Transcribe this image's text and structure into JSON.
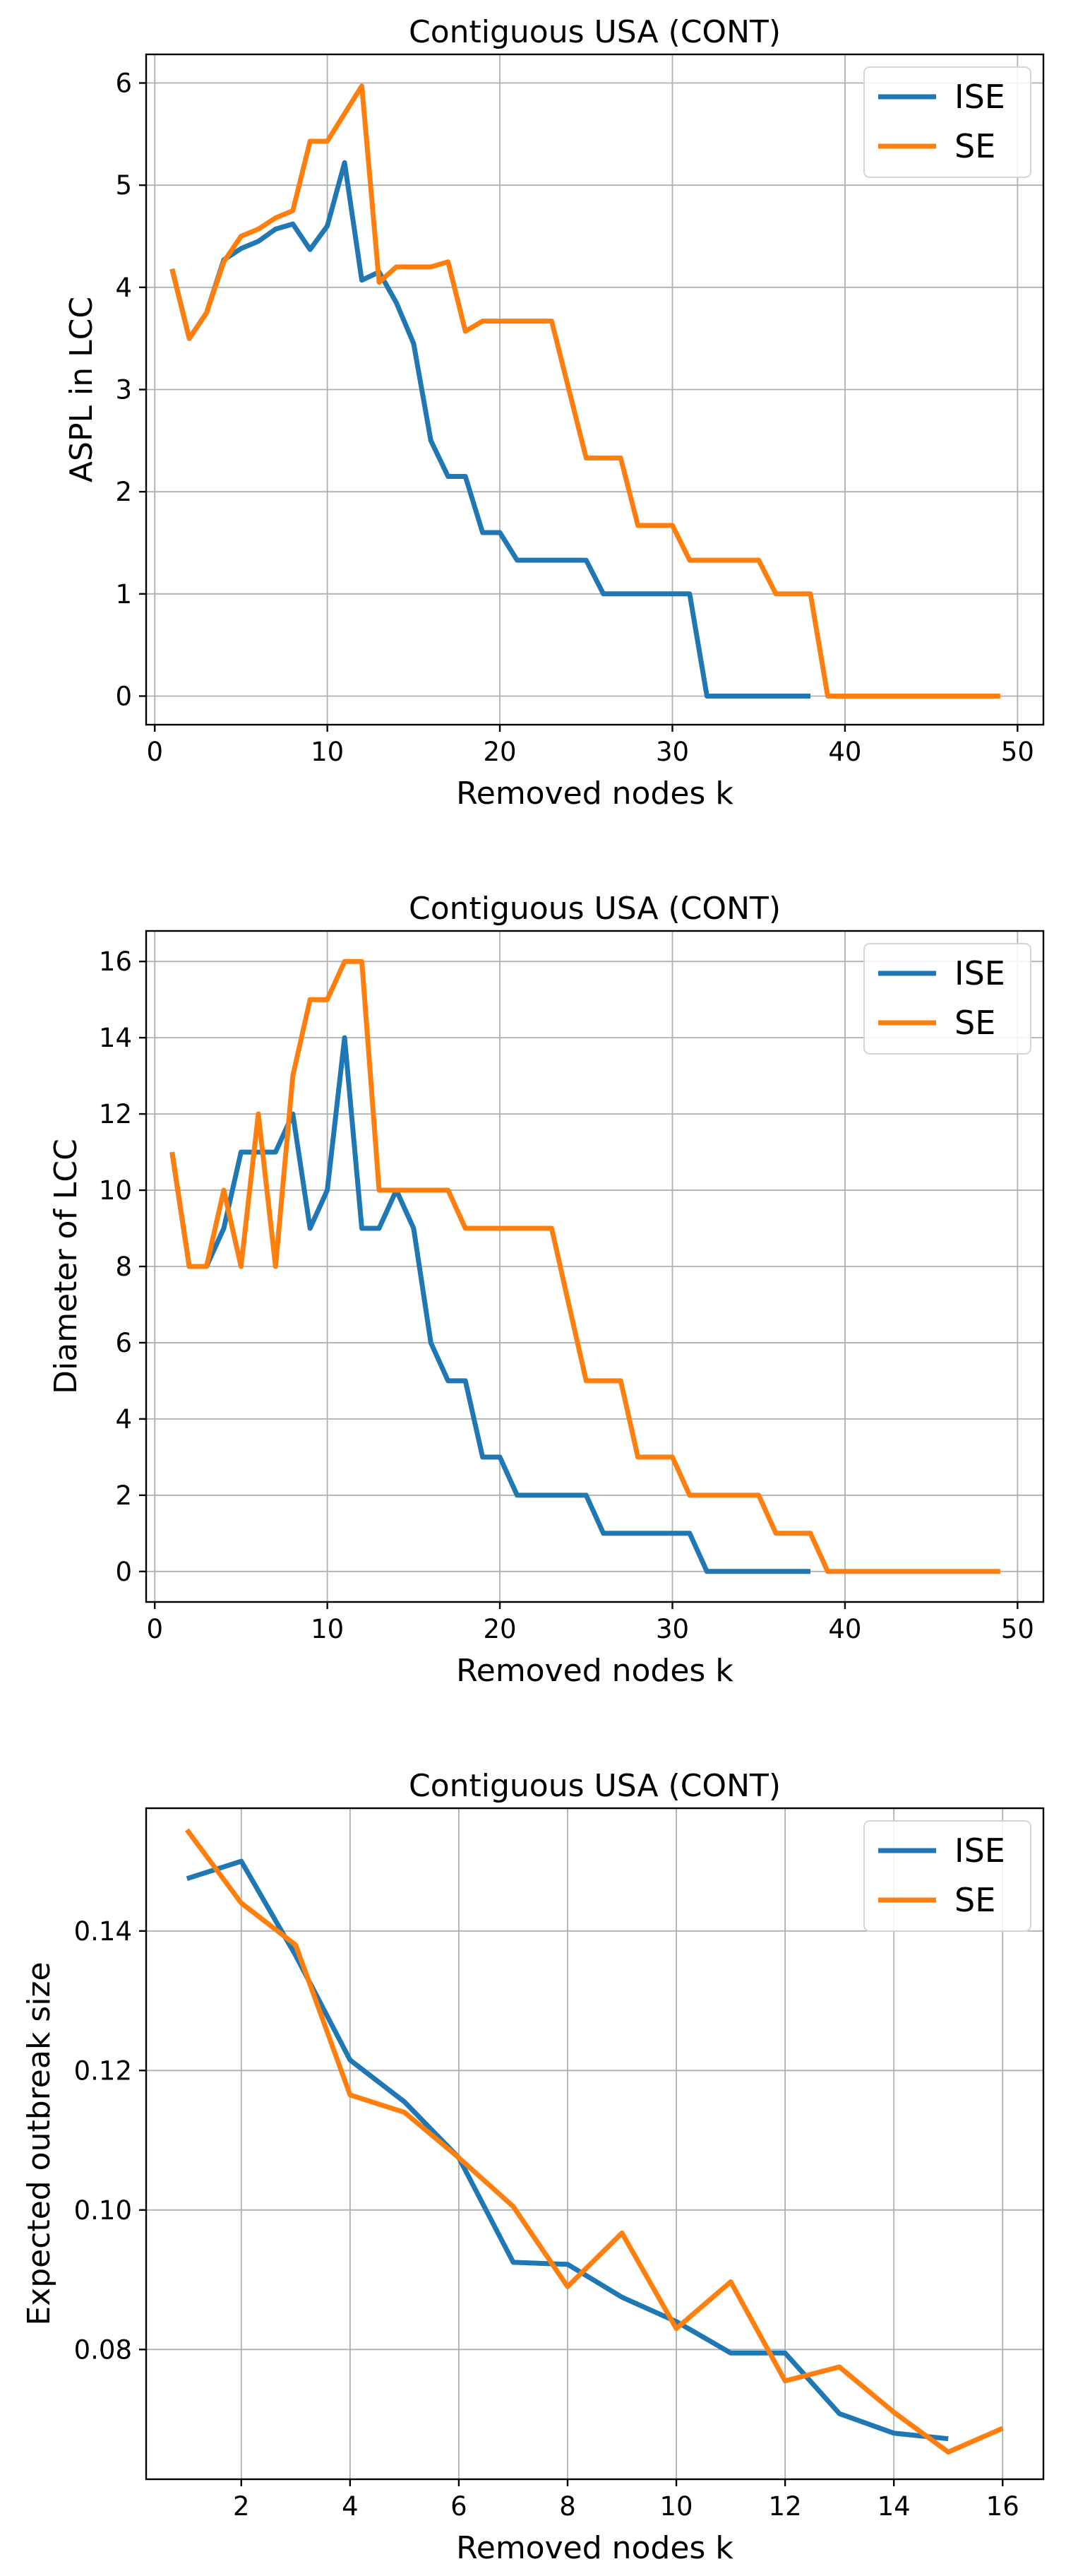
{
  "colors": {
    "ISE": "#1f77b4",
    "SE": "#ff7f0e"
  },
  "chart_data": [
    {
      "type": "line",
      "title": "Contiguous USA (CONT)",
      "xlabel": "Removed nodes k",
      "ylabel": "ASPL in LCC",
      "xlim": [
        -0.5,
        51.5
      ],
      "ylim": [
        -0.28,
        6.28
      ],
      "xticks": [
        0,
        10,
        20,
        30,
        40,
        50
      ],
      "yticks": [
        0,
        1,
        2,
        3,
        4,
        5,
        6
      ],
      "tick_labels_x": [
        "0",
        "10",
        "20",
        "30",
        "40",
        "50"
      ],
      "tick_labels_y": [
        "0",
        "1",
        "2",
        "3",
        "4",
        "5",
        "6"
      ],
      "grid": true,
      "legend": "top-right",
      "series": [
        {
          "name": "ISE",
          "x": [
            1,
            2,
            3,
            4,
            5,
            6,
            7,
            8,
            9,
            10,
            11,
            12,
            13,
            14,
            15,
            16,
            17,
            18,
            19,
            20,
            21,
            22,
            23,
            24,
            25,
            26,
            27,
            28,
            29,
            30,
            31,
            32,
            33,
            34,
            35,
            36,
            37,
            38
          ],
          "y": [
            4.18,
            3.5,
            3.75,
            4.27,
            4.38,
            4.45,
            4.57,
            4.62,
            4.37,
            4.6,
            5.22,
            4.07,
            4.15,
            3.85,
            3.45,
            2.5,
            2.15,
            2.15,
            1.6,
            1.6,
            1.33,
            1.33,
            1.33,
            1.33,
            1.33,
            1.0,
            1.0,
            1.0,
            1.0,
            1.0,
            1.0,
            0,
            0,
            0,
            0,
            0,
            0,
            0
          ]
        },
        {
          "name": "SE",
          "x": [
            1,
            2,
            3,
            4,
            5,
            6,
            7,
            8,
            9,
            10,
            11,
            12,
            13,
            14,
            15,
            16,
            17,
            18,
            19,
            20,
            21,
            22,
            23,
            24,
            25,
            26,
            27,
            28,
            29,
            30,
            31,
            32,
            33,
            34,
            35,
            36,
            37,
            38,
            39,
            40,
            41,
            42,
            43,
            44,
            45,
            46,
            47,
            48,
            49
          ],
          "y": [
            4.18,
            3.5,
            3.75,
            4.25,
            4.5,
            4.57,
            4.68,
            4.75,
            5.43,
            5.43,
            5.7,
            5.97,
            4.05,
            4.2,
            4.2,
            4.2,
            4.25,
            3.57,
            3.67,
            3.67,
            3.67,
            3.67,
            3.67,
            3.0,
            2.33,
            2.33,
            2.33,
            1.67,
            1.67,
            1.67,
            1.33,
            1.33,
            1.33,
            1.33,
            1.33,
            1.0,
            1.0,
            1.0,
            0,
            0,
            0,
            0,
            0,
            0,
            0,
            0,
            0,
            0,
            0
          ]
        }
      ]
    },
    {
      "type": "line",
      "title": "Contiguous USA (CONT)",
      "xlabel": "Removed nodes k",
      "ylabel": "Diameter of LCC",
      "xlim": [
        -0.5,
        51.5
      ],
      "ylim": [
        -0.8,
        16.8
      ],
      "xticks": [
        0,
        10,
        20,
        30,
        40,
        50
      ],
      "yticks": [
        0,
        2,
        4,
        6,
        8,
        10,
        12,
        14,
        16
      ],
      "tick_labels_x": [
        "0",
        "10",
        "20",
        "30",
        "40",
        "50"
      ],
      "tick_labels_y": [
        "0",
        "2",
        "4",
        "6",
        "8",
        "10",
        "12",
        "14",
        "16"
      ],
      "grid": true,
      "legend": "top-right",
      "series": [
        {
          "name": "ISE",
          "x": [
            1,
            2,
            3,
            4,
            5,
            6,
            7,
            8,
            9,
            10,
            11,
            12,
            13,
            14,
            15,
            16,
            17,
            18,
            19,
            20,
            21,
            22,
            23,
            24,
            25,
            26,
            27,
            28,
            29,
            30,
            31,
            32,
            33,
            34,
            35,
            36,
            37,
            38
          ],
          "y": [
            11,
            8,
            8,
            9,
            11,
            11,
            11,
            12,
            9,
            10,
            14,
            9,
            9,
            10,
            9,
            6,
            5,
            5,
            3,
            3,
            2,
            2,
            2,
            2,
            2,
            1,
            1,
            1,
            1,
            1,
            1,
            0,
            0,
            0,
            0,
            0,
            0,
            0
          ]
        },
        {
          "name": "SE",
          "x": [
            1,
            2,
            3,
            4,
            5,
            6,
            7,
            8,
            9,
            10,
            11,
            12,
            13,
            14,
            15,
            16,
            17,
            18,
            19,
            20,
            21,
            22,
            23,
            24,
            25,
            26,
            27,
            28,
            29,
            30,
            31,
            32,
            33,
            34,
            35,
            36,
            37,
            38,
            39,
            40,
            41,
            42,
            43,
            44,
            45,
            46,
            47,
            48,
            49
          ],
          "y": [
            11,
            8,
            8,
            10,
            8,
            12,
            8,
            13,
            15,
            15,
            16,
            16,
            10,
            10,
            10,
            10,
            10,
            9,
            9,
            9,
            9,
            9,
            9,
            7,
            5,
            5,
            5,
            3,
            3,
            3,
            2,
            2,
            2,
            2,
            2,
            1,
            1,
            1,
            0,
            0,
            0,
            0,
            0,
            0,
            0,
            0,
            0,
            0,
            0
          ]
        }
      ]
    },
    {
      "type": "line",
      "title": "Contiguous USA (CONT)",
      "xlabel": "Removed nodes k",
      "ylabel": "Expected outbreak size",
      "xlim": [
        0.25,
        16.75
      ],
      "ylim": [
        0.0614,
        0.1576
      ],
      "xticks": [
        2,
        4,
        6,
        8,
        10,
        12,
        14,
        16
      ],
      "yticks": [
        0.08,
        0.1,
        0.12,
        0.14
      ],
      "tick_labels_x": [
        "2",
        "4",
        "6",
        "8",
        "10",
        "12",
        "14",
        "16"
      ],
      "tick_labels_y": [
        "0.08",
        "0.10",
        "0.12",
        "0.14"
      ],
      "grid": true,
      "legend": "top-right",
      "series": [
        {
          "name": "ISE",
          "x": [
            1,
            2,
            3,
            4,
            5,
            6,
            7,
            8,
            9,
            10,
            11,
            12,
            13,
            14,
            15
          ],
          "y": [
            0.1475,
            0.15,
            0.1365,
            0.1215,
            0.1155,
            0.1075,
            0.0925,
            0.0922,
            0.0875,
            0.084,
            0.0795,
            0.0795,
            0.0708,
            0.068,
            0.0672
          ]
        },
        {
          "name": "SE",
          "x": [
            1,
            2,
            3,
            4,
            5,
            6,
            7,
            8,
            9,
            10,
            11,
            12,
            13,
            14,
            15,
            16
          ],
          "y": [
            0.1545,
            0.144,
            0.138,
            0.1165,
            0.114,
            0.1075,
            0.1005,
            0.089,
            0.0967,
            0.083,
            0.0897,
            0.0755,
            0.0775,
            0.071,
            0.0653,
            0.0687
          ]
        }
      ]
    }
  ]
}
